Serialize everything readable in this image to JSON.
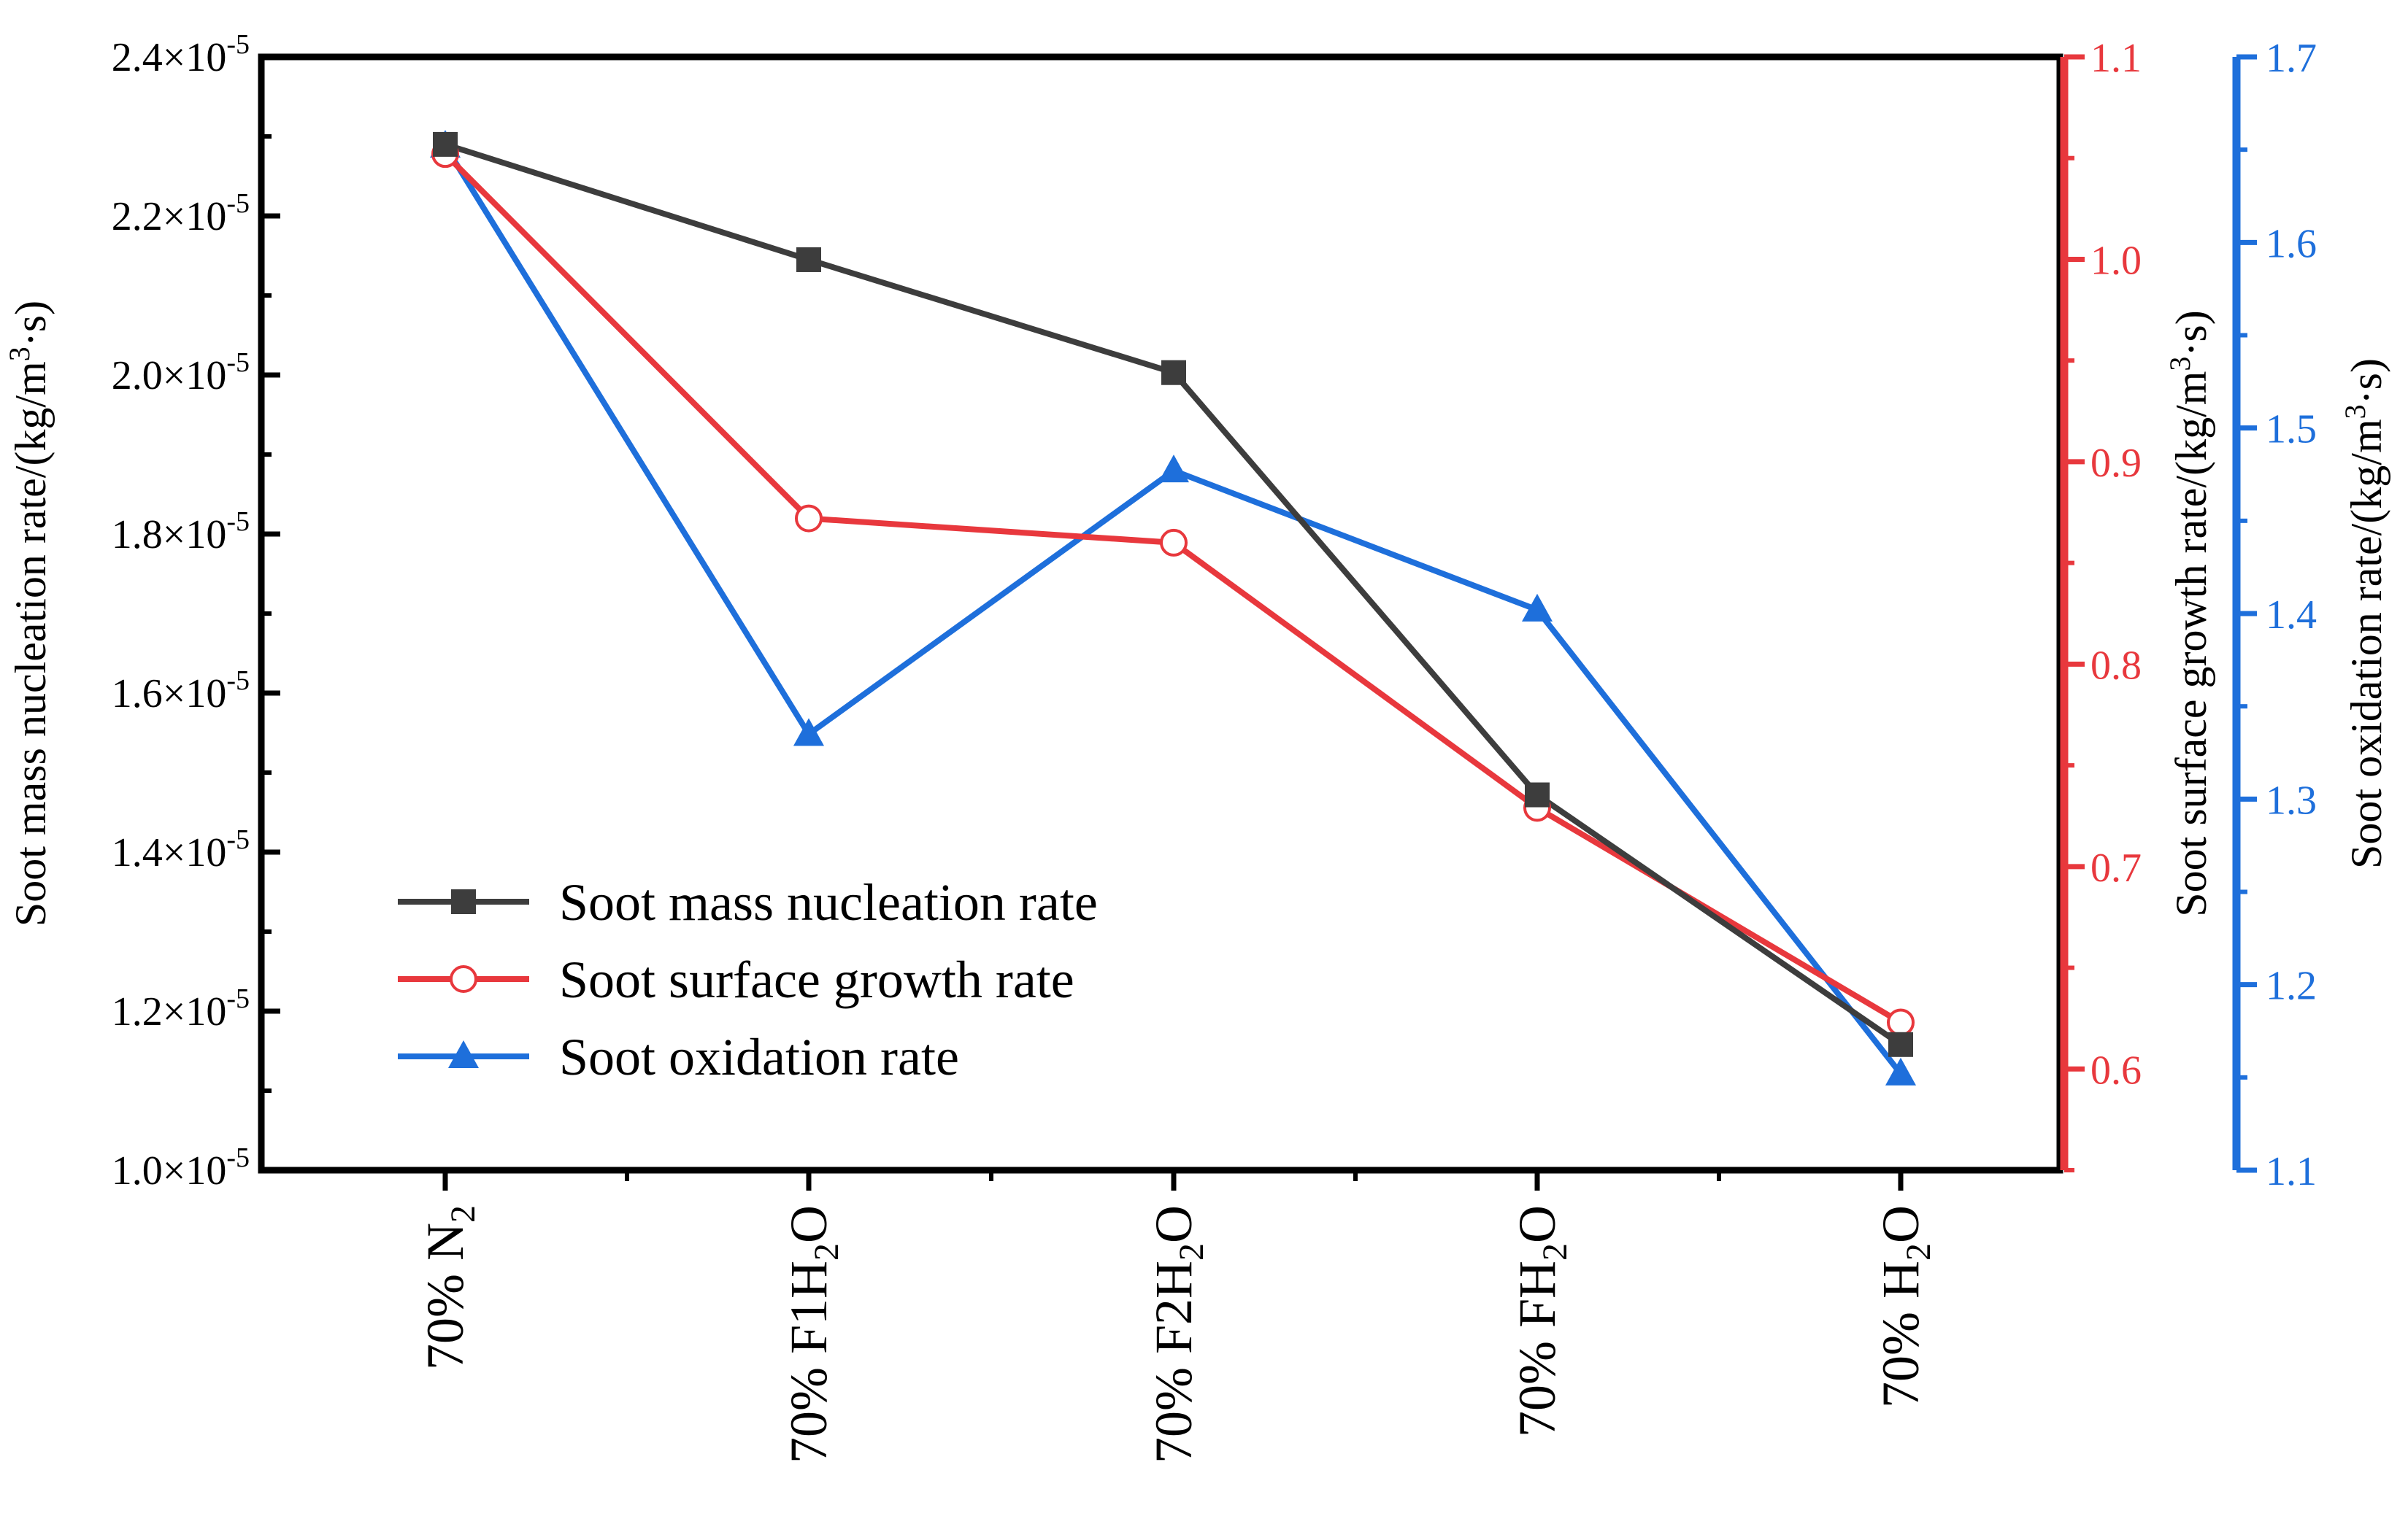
{
  "chart_data": {
    "type": "line",
    "title": "",
    "categories": [
      {
        "base": "70% N",
        "sub": "2",
        "tail": ""
      },
      {
        "base": "70% F1H",
        "sub": "2",
        "tail": "O"
      },
      {
        "base": "70% F2H",
        "sub": "2",
        "tail": "O"
      },
      {
        "base": "70% FH",
        "sub": "2",
        "tail": "O"
      },
      {
        "base": "70% H",
        "sub": "2",
        "tail": "O"
      }
    ],
    "axes": {
      "left": {
        "title_pre": "Soot mass nucleation rate/(kg/m",
        "title_sup": "3",
        "title_post": "·s)",
        "ylim": [
          1e-05,
          2.4e-05
        ],
        "ticks": [
          {
            "v": 1e-05,
            "base": "1.0×10",
            "exp": "-5"
          },
          {
            "v": 1.2e-05,
            "base": "1.2×10",
            "exp": "-5"
          },
          {
            "v": 1.4e-05,
            "base": "1.4×10",
            "exp": "-5"
          },
          {
            "v": 1.6e-05,
            "base": "1.6×10",
            "exp": "-5"
          },
          {
            "v": 1.8e-05,
            "base": "1.8×10",
            "exp": "-5"
          },
          {
            "v": 2e-05,
            "base": "2.0×10",
            "exp": "-5"
          },
          {
            "v": 2.2e-05,
            "base": "2.2×10",
            "exp": "-5"
          },
          {
            "v": 2.4e-05,
            "base": "2.4×10",
            "exp": "-5"
          }
        ],
        "color": "#000000"
      },
      "right1": {
        "title_pre": "Soot surface growth rate/(kg/m",
        "title_sup": "3",
        "title_post": "·s)",
        "ylim": [
          0.55,
          1.1
        ],
        "ticks": [
          {
            "v": 0.6,
            "label": "0.6"
          },
          {
            "v": 0.7,
            "label": "0.7"
          },
          {
            "v": 0.8,
            "label": "0.8"
          },
          {
            "v": 0.9,
            "label": "0.9"
          },
          {
            "v": 1.0,
            "label": "1.0"
          },
          {
            "v": 1.1,
            "label": "1.1"
          }
        ],
        "color": "#e8383d"
      },
      "right2": {
        "title_pre": "Soot oxidation rate/(kg/m",
        "title_sup": "3",
        "title_post": "·s)",
        "ylim": [
          1.1,
          1.7
        ],
        "ticks": [
          {
            "v": 1.1,
            "label": "1.1"
          },
          {
            "v": 1.2,
            "label": "1.2"
          },
          {
            "v": 1.3,
            "label": "1.3"
          },
          {
            "v": 1.4,
            "label": "1.4"
          },
          {
            "v": 1.5,
            "label": "1.5"
          },
          {
            "v": 1.6,
            "label": "1.6"
          },
          {
            "v": 1.7,
            "label": "1.7"
          }
        ],
        "color": "#1e6fdb"
      }
    },
    "series": [
      {
        "name": "Soot mass nucleation rate",
        "axis": "left",
        "color": "#3d3d3d",
        "marker": "square",
        "values": [
          2.29e-05,
          2.145e-05,
          2.003e-05,
          1.472e-05,
          1.158e-05
        ]
      },
      {
        "name": "Soot surface growth rate",
        "axis": "right1",
        "color": "#e8383d",
        "marker": "circle-open",
        "values": [
          1.052,
          0.872,
          0.86,
          0.729,
          0.623
        ]
      },
      {
        "name": "Soot oxidation rate",
        "axis": "right2",
        "color": "#1e6fdb",
        "marker": "triangle",
        "values": [
          1.652,
          1.335,
          1.477,
          1.402,
          1.152
        ]
      }
    ],
    "legend": {
      "position": "bottom-left"
    },
    "grid": false
  }
}
